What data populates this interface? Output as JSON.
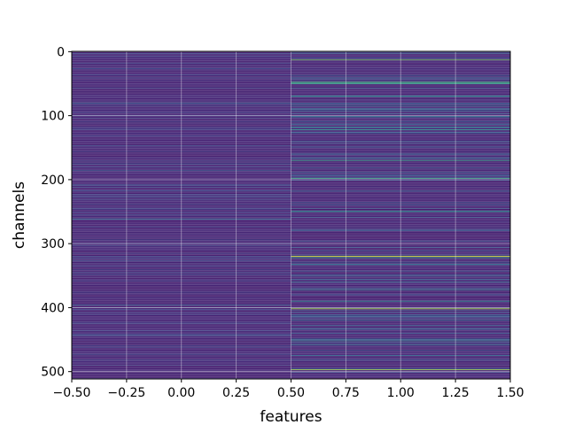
{
  "chart_data": {
    "type": "heatmap",
    "title": "",
    "xlabel": "features",
    "ylabel": "channels",
    "xlim": [
      -0.5,
      1.5
    ],
    "ylim": [
      511.5,
      -0.5
    ],
    "n_rows": 512,
    "columns": [
      0,
      1
    ],
    "xticks": [
      -0.5,
      -0.25,
      0.0,
      0.25,
      0.5,
      0.75,
      1.0,
      1.25,
      1.5
    ],
    "xtick_labels": [
      "−0.50",
      "−0.25",
      "0.00",
      "0.25",
      "0.50",
      "0.75",
      "1.00",
      "1.25",
      "1.50"
    ],
    "yticks": [
      0,
      100,
      200,
      300,
      400,
      500
    ],
    "ytick_labels": [
      "0",
      "100",
      "200",
      "300",
      "400",
      "500"
    ],
    "grid": true,
    "colormap": "viridis",
    "colormap_stops": [
      "#440154",
      "#482878",
      "#3e4989",
      "#31688e",
      "#26828e",
      "#1f9e89",
      "#35b779",
      "#6ece58",
      "#b5de2b",
      "#fde725"
    ],
    "background_level": 0.08,
    "highlight_rows": [
      {
        "row": 13,
        "col": 1,
        "level": 0.78
      },
      {
        "row": 48,
        "col": 1,
        "level": 0.72
      },
      {
        "row": 50,
        "col": 1,
        "level": 0.6
      },
      {
        "row": 70,
        "col": 1,
        "level": 0.55
      },
      {
        "row": 80,
        "col": 0,
        "level": 0.3
      },
      {
        "row": 85,
        "col": 1,
        "level": 0.35
      },
      {
        "row": 102,
        "col": 1,
        "level": 0.4
      },
      {
        "row": 118,
        "col": 1,
        "level": 0.45
      },
      {
        "row": 122,
        "col": 1,
        "level": 0.55
      },
      {
        "row": 140,
        "col": 1,
        "level": 0.3
      },
      {
        "row": 170,
        "col": 1,
        "level": 0.6
      },
      {
        "row": 186,
        "col": 0,
        "level": 0.3
      },
      {
        "row": 198,
        "col": 1,
        "level": 0.65
      },
      {
        "row": 218,
        "col": 1,
        "level": 0.35
      },
      {
        "row": 250,
        "col": 1,
        "level": 0.55
      },
      {
        "row": 262,
        "col": 0,
        "level": 0.35
      },
      {
        "row": 280,
        "col": 1,
        "level": 0.3
      },
      {
        "row": 320,
        "col": 1,
        "level": 0.95
      },
      {
        "row": 322,
        "col": 1,
        "level": 0.6
      },
      {
        "row": 333,
        "col": 1,
        "level": 0.4
      },
      {
        "row": 360,
        "col": 1,
        "level": 0.35
      },
      {
        "row": 372,
        "col": 1,
        "level": 0.45
      },
      {
        "row": 390,
        "col": 1,
        "level": 0.5
      },
      {
        "row": 396,
        "col": 0,
        "level": 0.3
      },
      {
        "row": 402,
        "col": 1,
        "level": 0.92
      },
      {
        "row": 420,
        "col": 1,
        "level": 0.4
      },
      {
        "row": 452,
        "col": 1,
        "level": 0.5
      },
      {
        "row": 458,
        "col": 1,
        "level": 0.4
      },
      {
        "row": 475,
        "col": 1,
        "level": 0.35
      },
      {
        "row": 497,
        "col": 1,
        "level": 0.85
      }
    ]
  }
}
